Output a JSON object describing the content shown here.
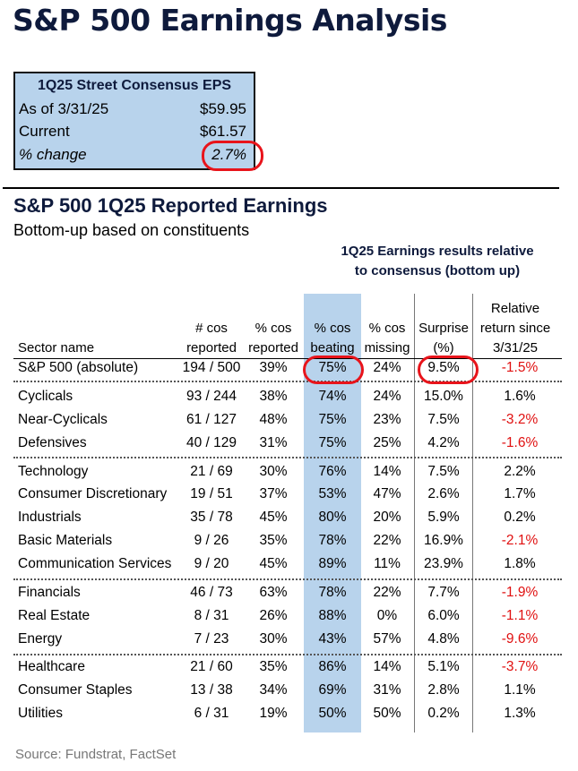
{
  "title": "S&P 500 Earnings Analysis",
  "consensus_box": {
    "header": "1Q25 Street Consensus EPS",
    "rows": [
      {
        "label": "As of 3/31/25",
        "value": "$59.95"
      },
      {
        "label": "Current",
        "value": "$61.57"
      },
      {
        "label": "% change",
        "value": "2.7%"
      }
    ]
  },
  "section": {
    "title": "S&P 500 1Q25 Reported Earnings",
    "subtitle": "Bottom-up based on constituents",
    "group_header_line1": "1Q25 Earnings results relative",
    "group_header_line2": "to consensus (bottom up)"
  },
  "columns": {
    "sector": "Sector name",
    "reported_1": "# cos",
    "reported_2": "reported",
    "pct_reported_1": "% cos",
    "pct_reported_2": "reported",
    "beating_1": "% cos",
    "beating_2": "beating",
    "missing_1": "% cos",
    "missing_2": "missing",
    "surprise_1": "Surprise",
    "surprise_2": "(%)",
    "relret_1": "Relative",
    "relret_2": "return since",
    "relret_3": "3/31/25"
  },
  "rows": [
    {
      "name": "S&P 500 (absolute)",
      "reported": "194 / 500",
      "pct_reported": "39%",
      "beating": "75%",
      "missing": "24%",
      "surprise": "9.5%",
      "rel": "-1.5%"
    },
    {
      "name": "Cyclicals",
      "reported": "93 / 244",
      "pct_reported": "38%",
      "beating": "74%",
      "missing": "24%",
      "surprise": "15.0%",
      "rel": "1.6%"
    },
    {
      "name": "Near-Cyclicals",
      "reported": "61 / 127",
      "pct_reported": "48%",
      "beating": "75%",
      "missing": "23%",
      "surprise": "7.5%",
      "rel": "-3.2%"
    },
    {
      "name": "Defensives",
      "reported": "40 / 129",
      "pct_reported": "31%",
      "beating": "75%",
      "missing": "25%",
      "surprise": "4.2%",
      "rel": "-1.6%"
    },
    {
      "name": "Technology",
      "reported": "21 / 69",
      "pct_reported": "30%",
      "beating": "76%",
      "missing": "14%",
      "surprise": "7.5%",
      "rel": "2.2%"
    },
    {
      "name": "Consumer Discretionary",
      "reported": "19 / 51",
      "pct_reported": "37%",
      "beating": "53%",
      "missing": "47%",
      "surprise": "2.6%",
      "rel": "1.7%"
    },
    {
      "name": "Industrials",
      "reported": "35 / 78",
      "pct_reported": "45%",
      "beating": "80%",
      "missing": "20%",
      "surprise": "5.9%",
      "rel": "0.2%"
    },
    {
      "name": "Basic Materials",
      "reported": "9 / 26",
      "pct_reported": "35%",
      "beating": "78%",
      "missing": "22%",
      "surprise": "16.9%",
      "rel": "-2.1%"
    },
    {
      "name": "Communication Services",
      "reported": "9 / 20",
      "pct_reported": "45%",
      "beating": "89%",
      "missing": "11%",
      "surprise": "23.9%",
      "rel": "1.8%"
    },
    {
      "name": "Financials",
      "reported": "46 / 73",
      "pct_reported": "63%",
      "beating": "78%",
      "missing": "22%",
      "surprise": "7.7%",
      "rel": "-1.9%"
    },
    {
      "name": "Real Estate",
      "reported": "8 / 31",
      "pct_reported": "26%",
      "beating": "88%",
      "missing": "0%",
      "surprise": "6.0%",
      "rel": "-1.1%"
    },
    {
      "name": "Energy",
      "reported": "7 / 23",
      "pct_reported": "30%",
      "beating": "43%",
      "missing": "57%",
      "surprise": "4.8%",
      "rel": "-9.6%"
    },
    {
      "name": "Healthcare",
      "reported": "21 / 60",
      "pct_reported": "35%",
      "beating": "86%",
      "missing": "14%",
      "surprise": "5.1%",
      "rel": "-3.7%"
    },
    {
      "name": "Consumer Staples",
      "reported": "13 / 38",
      "pct_reported": "34%",
      "beating": "69%",
      "missing": "31%",
      "surprise": "2.8%",
      "rel": "1.1%"
    },
    {
      "name": "Utilities",
      "reported": "6 / 31",
      "pct_reported": "19%",
      "beating": "50%",
      "missing": "50%",
      "surprise": "0.2%",
      "rel": "1.3%"
    }
  ],
  "source": "Source: Fundstrat, FactSet",
  "colors": {
    "negative": "#e01010",
    "highlight": "#b8d3ec",
    "title": "#0e1a3c",
    "circle": "#e8141b"
  }
}
